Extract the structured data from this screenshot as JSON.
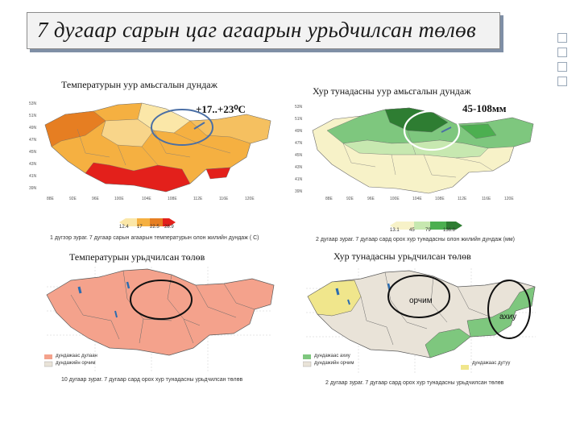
{
  "title": "7 дугаар сарын цаг агаарын урьдчилсан төлөв",
  "panels": {
    "top_left": {
      "heading": "Температурын уур амьсгалын дундаж",
      "value": "+17..+23⁰С",
      "legend": [
        "12.4",
        "17",
        "22.5",
        "28.9"
      ],
      "caption": "1 дүгээр зураг. 7 дугаар сарын агаарын температурын олон жилийн дундаж ( С)"
    },
    "top_right": {
      "heading": "Хур тунадасны уур амьсгалын дундаж",
      "value": "45-108мм",
      "legend": [
        "13.1",
        "45",
        "79",
        "136.8"
      ],
      "caption": "2 дугаар зураг. 7 дугаар сард орох хур тунадасны олон жилийн дундаж (мм)"
    },
    "bottom_left": {
      "heading": "Температурын урьдчилсан төлөв",
      "legend": [
        "дундажаас дулаан",
        "дундажийн орчим"
      ],
      "caption": "10 дугаар зураг. 7 дугаар сард орох хур тунадасны урьдчилсан төлөв"
    },
    "bottom_right": {
      "heading": "Хур тунадасны урьдчилсан төлөв",
      "label_a": "орчим",
      "label_b": "ахиу",
      "legend": [
        "дундажаас ахиу",
        "дундажийн орчим",
        "дундажаас дутуу"
      ],
      "caption": "2 дугаар зураг. 7 дугаар сард орох хур тунадасны урьдчилсан төлөв"
    }
  },
  "colors": {
    "temp_low": "#fbe7a8",
    "temp_mid": "#f5b041",
    "temp_high": "#e67e22",
    "temp_hot": "#e3201b",
    "precip_low": "#f7f2c8",
    "precip_mid": "#c7e8b0",
    "precip_high": "#4caf50",
    "precip_vhigh": "#2e7d32",
    "forecast_warm": "#f4a28c",
    "forecast_near": "#e9e3d8",
    "forecast_wet": "#7ec77e",
    "forecast_dry": "#f0e68c"
  }
}
